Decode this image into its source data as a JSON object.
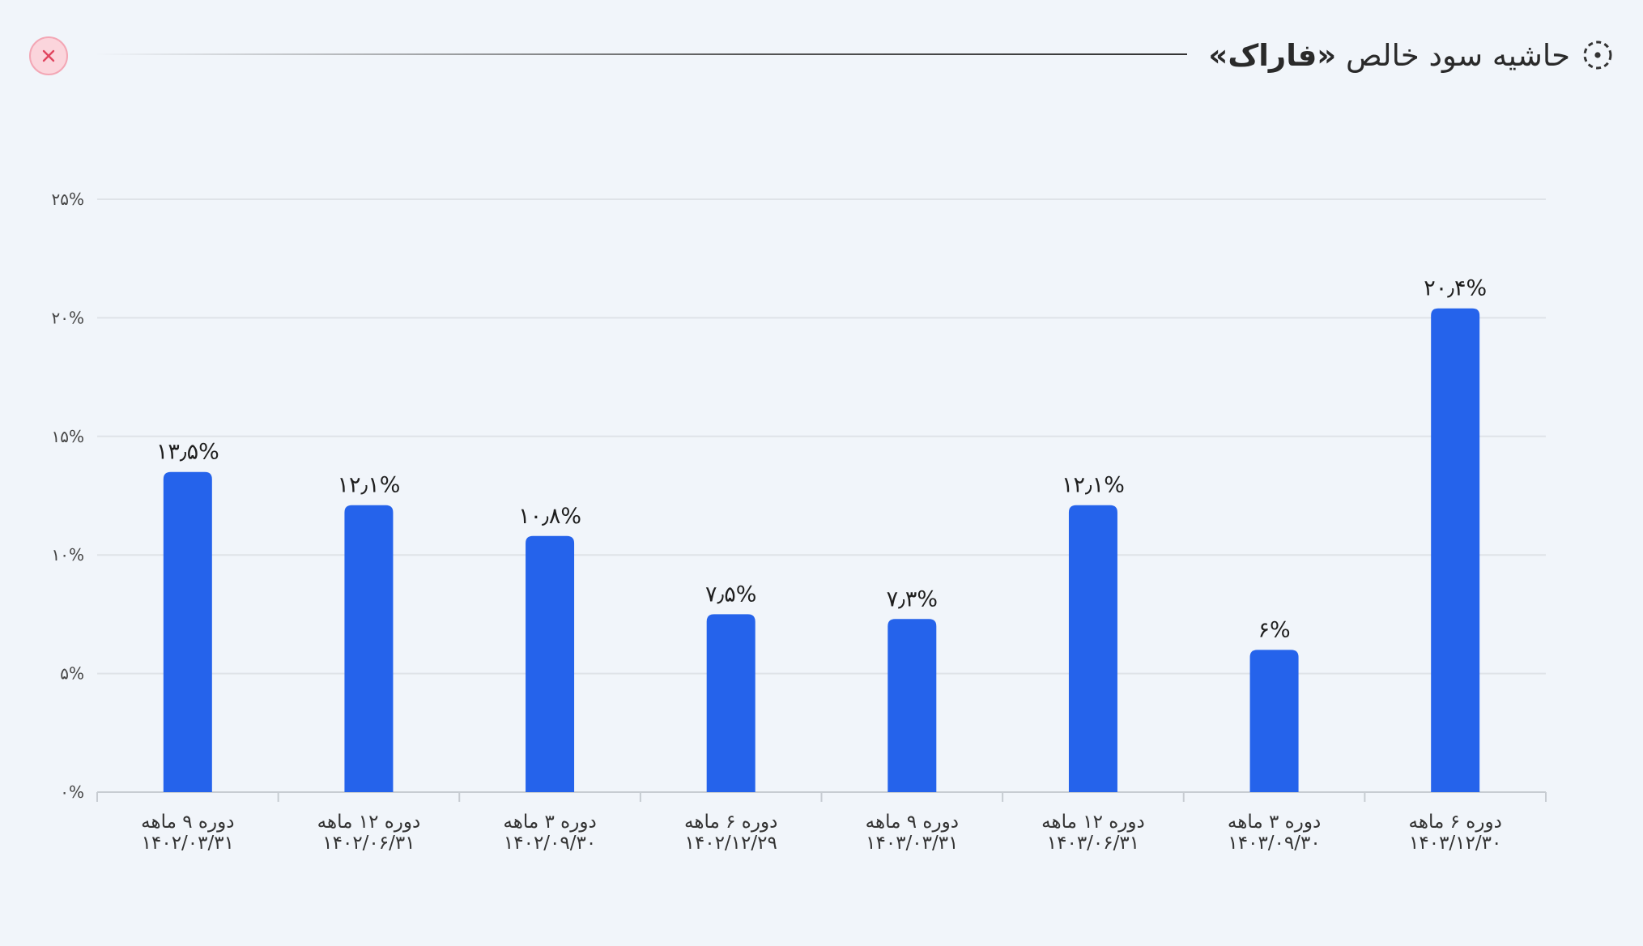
{
  "header": {
    "title_prefix": "حاشیه سود خالص ",
    "title_symbol": "«فاراک»",
    "title_icon": "dashed-circle-icon",
    "close_icon": "close-icon"
  },
  "colors": {
    "bar": "#2563eb",
    "grid": "#dfe3e8",
    "axis": "#c7ccd2",
    "close_bg": "#fbd5dc",
    "close_x": "#e0455f"
  },
  "chart_data": {
    "type": "bar",
    "categories": [
      [
        "دوره ۹ ماهه",
        "۱۴۰۲/۰۳/۳۱"
      ],
      [
        "دوره ۱۲ ماهه",
        "۱۴۰۲/۰۶/۳۱"
      ],
      [
        "دوره ۳ ماهه",
        "۱۴۰۲/۰۹/۳۰"
      ],
      [
        "دوره ۶ ماهه",
        "۱۴۰۲/۱۲/۲۹"
      ],
      [
        "دوره ۹ ماهه",
        "۱۴۰۳/۰۳/۳۱"
      ],
      [
        "دوره ۱۲ ماهه",
        "۱۴۰۳/۰۶/۳۱"
      ],
      [
        "دوره ۳ ماهه",
        "۱۴۰۳/۰۹/۳۰"
      ],
      [
        "دوره ۶ ماهه",
        "۱۴۰۳/۱۲/۳۰"
      ]
    ],
    "values": [
      13.5,
      12.1,
      10.8,
      7.5,
      7.3,
      12.1,
      6,
      20.4
    ],
    "value_labels": [
      "۱۳٫۵%",
      "۱۲٫۱%",
      "۱۰٫۸%",
      "۷٫۵%",
      "۷٫۳%",
      "۱۲٫۱%",
      "۶%",
      "۲۰٫۴%"
    ],
    "yticks": [
      0,
      5,
      10,
      15,
      20,
      25
    ],
    "ytick_labels": [
      "۰%",
      "۵%",
      "۱۰%",
      "۱۵%",
      "۲۰%",
      "۲۵%"
    ],
    "ylim": [
      0,
      25
    ],
    "grid": true,
    "legend": "none"
  }
}
